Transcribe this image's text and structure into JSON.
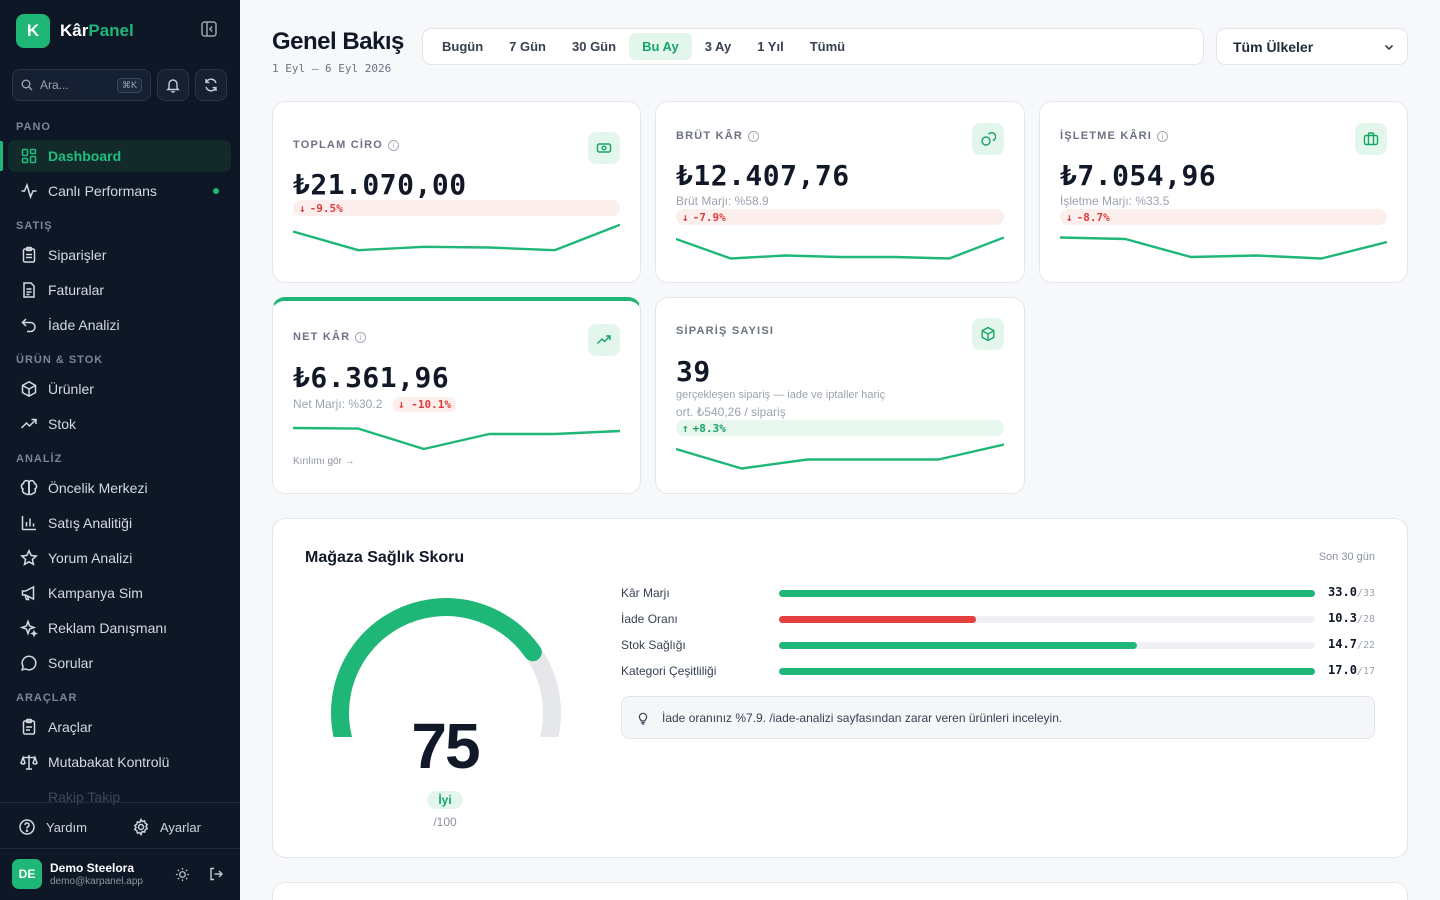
{
  "brand": {
    "logo_letter": "K",
    "name_part1": "Kâr",
    "name_part2": "Panel",
    "accent": "#1fb777"
  },
  "search": {
    "placeholder": "Ara...",
    "shortcut": "⌘K"
  },
  "sidebar": {
    "sections": [
      {
        "title": "PANO",
        "items": [
          {
            "label": "Dashboard",
            "icon": "dashboard-icon",
            "active": true
          },
          {
            "label": "Canlı Performans",
            "icon": "activity-icon",
            "live": true
          }
        ]
      },
      {
        "title": "SATIŞ",
        "items": [
          {
            "label": "Siparişler",
            "icon": "clipboard-icon"
          },
          {
            "label": "Faturalar",
            "icon": "file-icon"
          },
          {
            "label": "İade Analizi",
            "icon": "return-icon"
          }
        ]
      },
      {
        "title": "ÜRÜN & STOK",
        "items": [
          {
            "label": "Ürünler",
            "icon": "package-icon"
          },
          {
            "label": "Stok",
            "icon": "trending-icon"
          }
        ]
      },
      {
        "title": "ANALİZ",
        "items": [
          {
            "label": "Öncelik Merkezi",
            "icon": "brain-icon"
          },
          {
            "label": "Satış Analitiği",
            "icon": "bar-chart-icon"
          },
          {
            "label": "Yorum Analizi",
            "icon": "star-icon"
          },
          {
            "label": "Kampanya Sim",
            "icon": "megaphone-icon"
          },
          {
            "label": "Reklam Danışmanı",
            "icon": "sparkle-icon"
          },
          {
            "label": "Sorular",
            "icon": "message-icon"
          }
        ]
      },
      {
        "title": "ARAÇLAR",
        "items": [
          {
            "label": "Araçlar",
            "icon": "tools-icon"
          },
          {
            "label": "Mutabakat Kontrolü",
            "icon": "scale-icon"
          }
        ]
      }
    ],
    "faded_item": "Rakip Takip",
    "footer": {
      "help": "Yardım",
      "settings": "Ayarlar"
    },
    "user": {
      "initials": "DE",
      "name": "Demo Steelora",
      "email": "demo@karpanel.app"
    }
  },
  "header": {
    "title": "Genel Bakış",
    "date_range": "1 Eyl — 6 Eyl 2026",
    "tabs": [
      "Bugün",
      "7 Gün",
      "30 Gün",
      "Bu Ay",
      "3 Ay",
      "1 Yıl",
      "Tümü"
    ],
    "active_tab": "Bu Ay",
    "country": "Tüm Ülkeler"
  },
  "kpis": {
    "revenue": {
      "label": "TOPLAM CİRO",
      "value": "₺21.070,00",
      "delta": "-9.5%",
      "spark": [
        0.75,
        0.2,
        0.3,
        0.28,
        0.2,
        0.95
      ]
    },
    "gross": {
      "label": "BRÜT KÂR",
      "value": "₺12.407,76",
      "sub": "Brüt Marjı: %58.9",
      "delta": "-7.9%",
      "spark": [
        0.8,
        0.15,
        0.25,
        0.2,
        0.2,
        0.15,
        0.85
      ]
    },
    "operating": {
      "label": "İŞLETME KÂRI",
      "value": "₺7.054,96",
      "sub": "İşletme Marjı: %33.5",
      "delta": "-8.7%",
      "spark": [
        0.85,
        0.8,
        0.2,
        0.25,
        0.15,
        0.7
      ]
    },
    "net": {
      "label": "NET KÂR",
      "value": "₺6.361,96",
      "sub": "Net Marjı: %30.2",
      "delta": "-10.1%",
      "link": "Kırılımı gör →",
      "spark": [
        0.8,
        0.78,
        0.1,
        0.6,
        0.6,
        0.7
      ]
    },
    "orders": {
      "label": "SİPARİŞ SAYISI",
      "value": "39",
      "sub1": "gerçekleşen sipariş — iade ve iptaller hariç",
      "sub2": "ort. ₺540,26 / sipariş",
      "delta": "+8.3%",
      "spark": [
        0.8,
        0.15,
        0.45,
        0.45,
        0.45,
        0.95
      ]
    }
  },
  "health": {
    "title": "Mağaza Sağlık Skoru",
    "range": "Son 30 gün",
    "score": "75",
    "score_value": 75,
    "score_label": "İyi",
    "score_max": "/100",
    "metrics": [
      {
        "label": "Kâr Marjı",
        "value": "33.0",
        "max": "/33",
        "ratio": 1.0,
        "color": "#1fb777"
      },
      {
        "label": "İade Oranı",
        "value": "10.3",
        "max": "/28",
        "ratio": 0.368,
        "color": "#e53e3e"
      },
      {
        "label": "Stok Sağlığı",
        "value": "14.7",
        "max": "/22",
        "ratio": 0.668,
        "color": "#1fb777"
      },
      {
        "label": "Kategori Çeşitliliği",
        "value": "17.0",
        "max": "/17",
        "ratio": 1.0,
        "color": "#1fb777"
      }
    ],
    "tip": "İade oranınız %7.9. /iade-analizi sayfasından zarar veren ürünleri inceleyin."
  }
}
